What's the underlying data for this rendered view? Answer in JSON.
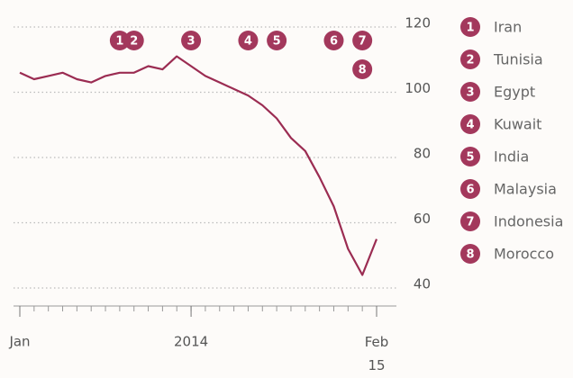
{
  "chart_data": {
    "type": "line",
    "x": [
      "2013-01",
      "2013-02",
      "2013-03",
      "2013-04",
      "2013-05",
      "2013-06",
      "2013-07",
      "2013-08",
      "2013-09",
      "2013-10",
      "2013-11",
      "2013-12",
      "2014-01",
      "2014-02",
      "2014-03",
      "2014-04",
      "2014-05",
      "2014-06",
      "2014-07",
      "2014-08",
      "2014-09",
      "2014-10",
      "2014-11",
      "2014-12",
      "2015-01",
      "2015-02"
    ],
    "series": [
      {
        "color": "#9b2c52",
        "values": [
          106,
          104,
          105,
          106,
          104,
          103,
          105,
          106,
          106,
          108,
          107,
          111,
          108,
          105,
          103,
          101,
          99,
          96,
          92,
          86,
          82,
          74,
          65,
          52,
          44,
          55
        ]
      }
    ],
    "ylim": [
      40,
      120
    ],
    "yticks": [
      40,
      60,
      80,
      100,
      120
    ],
    "xlim": [
      "2013-01",
      "2015-02"
    ],
    "xticks": [
      {
        "value": "2013-01",
        "label": "Jan"
      },
      {
        "value": "2014-01",
        "label": "2014"
      },
      {
        "value": "2015-02",
        "label": "Feb 15"
      }
    ],
    "grid": true,
    "marker_color": "#a3385c",
    "annotations": [
      {
        "label": "1",
        "name": "Iran",
        "x": "2013-08"
      },
      {
        "label": "2",
        "name": "Tunisia",
        "x": "2013-09"
      },
      {
        "label": "3",
        "name": "Egypt",
        "x": "2014-01"
      },
      {
        "label": "4",
        "name": "Kuwait",
        "x": "2014-05"
      },
      {
        "label": "5",
        "name": "India",
        "x": "2014-07"
      },
      {
        "label": "6",
        "name": "Malaysia",
        "x": "2014-11"
      },
      {
        "label": "7",
        "name": "Indonesia",
        "x": "2015-01"
      },
      {
        "label": "8",
        "name": "Morocco",
        "x": "2015-01"
      }
    ]
  }
}
